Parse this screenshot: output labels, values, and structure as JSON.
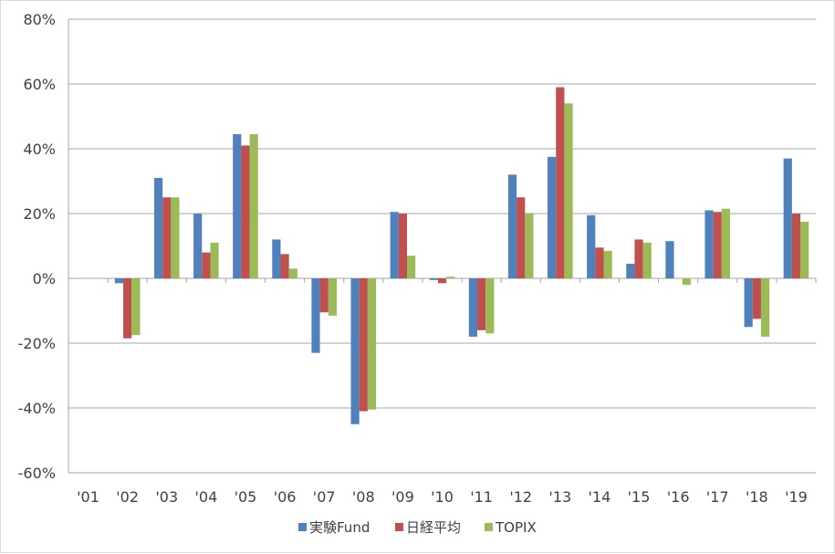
{
  "chart_data": {
    "type": "bar",
    "categories": [
      "'01",
      "'02",
      "'03",
      "'04",
      "'05",
      "'06",
      "'07",
      "'08",
      "'09",
      "'10",
      "'11",
      "'12",
      "'13",
      "'14",
      "'15",
      "'16",
      "'17",
      "'18",
      "'19"
    ],
    "series": [
      {
        "name": "実験Fund",
        "color": "#4f81bd",
        "values": [
          0,
          -1.5,
          31,
          20,
          44.5,
          12,
          -23,
          -45,
          20.5,
          -0.5,
          -18,
          32,
          37.5,
          19.5,
          4.5,
          11.5,
          21,
          -15,
          37
        ]
      },
      {
        "name": "日経平均",
        "color": "#c0504d",
        "values": [
          0,
          -18.5,
          25,
          8,
          41,
          7.5,
          -10.5,
          -41,
          20,
          -1.5,
          -16,
          25,
          59,
          9.5,
          12,
          0,
          20.5,
          -12.5,
          20
        ]
      },
      {
        "name": "TOPIX",
        "color": "#9bbb59",
        "values": [
          0,
          -17.5,
          25,
          11,
          44.5,
          3,
          -11.5,
          -40.5,
          7,
          0.5,
          -17,
          20,
          54,
          8.5,
          11,
          -2,
          21.5,
          -18,
          17.5
        ]
      }
    ],
    "ylim": [
      -60,
      80
    ],
    "yticks": [
      "-60%",
      "-40%",
      "-20%",
      "0%",
      "20%",
      "40%",
      "60%",
      "80%"
    ],
    "ytick_values": [
      -60,
      -40,
      -20,
      0,
      20,
      40,
      60,
      80
    ],
    "grid": true,
    "legend": "bottom",
    "title": "",
    "xlabel": "",
    "ylabel": ""
  }
}
